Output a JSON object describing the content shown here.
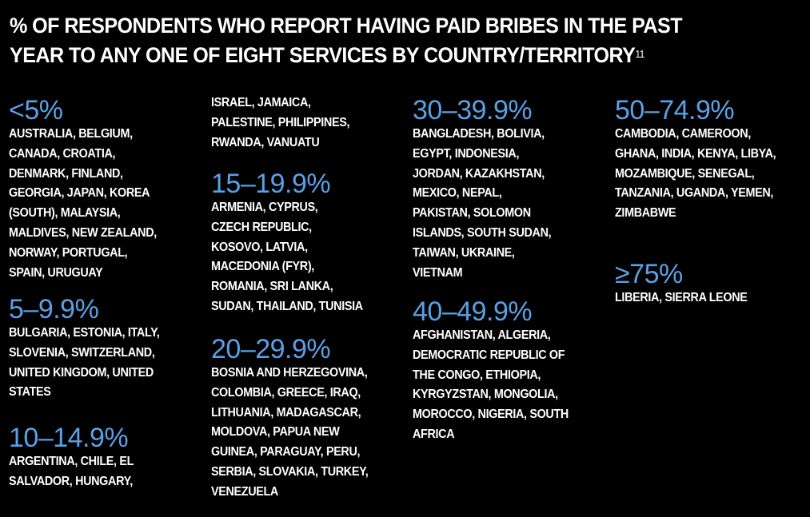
{
  "title": {
    "line1": "% OF RESPONDENTS WHO REPORT HAVING PAID BRIBES IN THE PAST",
    "line2": "YEAR TO ANY ONE OF EIGHT SERVICES BY COUNTRY/TERRITORY",
    "footnote": "11"
  },
  "accent_color": "#5aa0e6",
  "groups": {
    "g1": {
      "range": "<5%",
      "countries": "AUSTRALIA, BELGIUM,\nCANADA, CROATIA,\nDENMARK, FINLAND,\nGEORGIA, JAPAN, KOREA\n(SOUTH), MALAYSIA,\nMALDIVES, NEW ZEALAND,\nNORWAY, PORTUGAL,\nSPAIN, URUGUAY"
    },
    "g2": {
      "range": "5–9.9%",
      "countries": "BULGARIA, ESTONIA, ITALY,\nSLOVENIA, SWITZERLAND,\nUNITED KINGDOM, UNITED\nSTATES"
    },
    "g3": {
      "range": "10–14.9%",
      "countries": "ARGENTINA, CHILE, EL\nSALVADOR, HUNGARY,",
      "continued": "ISRAEL, JAMAICA,\nPALESTINE, PHILIPPINES,\nRWANDA, VANUATU"
    },
    "g4": {
      "range": "15–19.9%",
      "countries": "ARMENIA, CYPRUS,\nCZECH REPUBLIC,\nKOSOVO, LATVIA,\nMACEDONIA (FYR),\nROMANIA, SRI LANKA,\nSUDAN, THAILAND, TUNISIA"
    },
    "g5": {
      "range": "20–29.9%",
      "countries": "BOSNIA AND HERZEGOVINA,\nCOLOMBIA, GREECE, IRAQ,\nLITHUANIA, MADAGASCAR,\nMOLDOVA, PAPUA NEW\nGUINEA, PARAGUAY, PERU,\nSERBIA, SLOVAKIA, TURKEY,\nVENEZUELA"
    },
    "g6": {
      "range": "30–39.9%",
      "countries": "BANGLADESH, BOLIVIA,\nEGYPT, INDONESIA,\nJORDAN, KAZAKHSTAN,\nMEXICO, NEPAL,\nPAKISTAN, SOLOMON\nISLANDS, SOUTH SUDAN,\nTAIWAN, UKRAINE,\nVIETNAM"
    },
    "g7": {
      "range": "40–49.9%",
      "countries": "AFGHANISTAN, ALGERIA,\nDEMOCRATIC REPUBLIC OF\nTHE CONGO, ETHIOPIA,\nKYRGYZSTAN, MONGOLIA,\nMOROCCO, NIGERIA, SOUTH\nAFRICA"
    },
    "g8": {
      "range": "50–74.9%",
      "countries": "CAMBODIA, CAMEROON,\nGHANA, INDIA, KENYA, LIBYA,\nMOZAMBIQUE, SENEGAL,\nTANZANIA, UGANDA, YEMEN,\nZIMBABWE"
    },
    "g9": {
      "range": "≥75%",
      "countries": "LIBERIA, SIERRA LEONE"
    }
  }
}
